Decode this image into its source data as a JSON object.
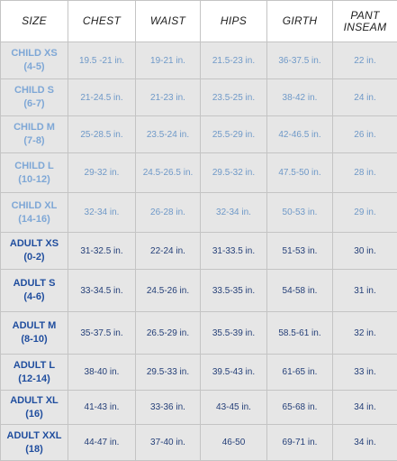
{
  "columns": [
    {
      "lines": [
        "SIZE"
      ]
    },
    {
      "lines": [
        "CHEST"
      ]
    },
    {
      "lines": [
        "WAIST"
      ]
    },
    {
      "lines": [
        "HIPS"
      ]
    },
    {
      "lines": [
        "GIRTH"
      ]
    },
    {
      "lines": [
        "PANT",
        "INSEAM"
      ]
    }
  ],
  "rows": [
    {
      "group": "child",
      "size": "CHILD XS",
      "range": "(4-5)",
      "chest": "19.5 -21 in.",
      "waist": "19-21 in.",
      "hips": "21.5-23 in.",
      "girth": "36-37.5 in.",
      "inseam": "22 in."
    },
    {
      "group": "child",
      "size": "CHILD S",
      "range": "(6-7)",
      "chest": "21-24.5 in.",
      "waist": "21-23 in.",
      "hips": "23.5-25 in.",
      "girth": "38-42 in.",
      "inseam": "24 in."
    },
    {
      "group": "child",
      "size": "CHILD M",
      "range": "(7-8)",
      "chest": "25-28.5 in.",
      "waist": "23.5-24 in.",
      "hips": "25.5-29 in.",
      "girth": "42-46.5 in.",
      "inseam": "26 in."
    },
    {
      "group": "child",
      "size": "CHILD L",
      "range": "(10-12)",
      "chest": "29-32 in.",
      "waist": "24.5-26.5 in.",
      "hips": "29.5-32 in.",
      "girth": "47.5-50 in.",
      "inseam": "28 in."
    },
    {
      "group": "child",
      "size": "CHILD XL",
      "range": "(14-16)",
      "chest": "32-34 in.",
      "waist": "26-28 in.",
      "hips": "32-34 in.",
      "girth": "50-53 in.",
      "inseam": "29 in."
    },
    {
      "group": "adult",
      "size": "ADULT XS",
      "range": "(0-2)",
      "chest": "31-32.5 in.",
      "waist": "22-24 in.",
      "hips": "31-33.5 in.",
      "girth": "51-53 in.",
      "inseam": "30 in."
    },
    {
      "group": "adult",
      "size": "ADULT S",
      "range": "(4-6)",
      "chest": "33-34.5 in.",
      "waist": "24.5-26 in.",
      "hips": "33.5-35 in.",
      "girth": "54-58 in.",
      "inseam": "31 in."
    },
    {
      "group": "adult",
      "size": "ADULT M",
      "range": "(8-10)",
      "chest": "35-37.5 in.",
      "waist": "26.5-29 in.",
      "hips": "35.5-39 in.",
      "girth": "58.5-61 in.",
      "inseam": "32 in."
    },
    {
      "group": "adult",
      "size": "ADULT L",
      "range": "(12-14)",
      "chest": "38-40 in.",
      "waist": "29.5-33 in.",
      "hips": "39.5-43 in.",
      "girth": "61-65 in.",
      "inseam": "33 in."
    },
    {
      "group": "adult",
      "size": "ADULT XL",
      "range": "(16)",
      "chest": "41-43 in.",
      "waist": "33-36 in.",
      "hips": "43-45 in.",
      "girth": "65-68 in.",
      "inseam": "34 in."
    },
    {
      "group": "adult",
      "size": "ADULT XXL",
      "range": "(18)",
      "chest": "44-47 in.",
      "waist": "37-40 in.",
      "hips": "46-50",
      "girth": "69-71 in.",
      "inseam": "34 in."
    }
  ],
  "colors": {
    "child_label": "#7ea7d6",
    "adult_label": "#1f4d9e",
    "cell_bg": "#e6e6e6",
    "border": "#c4c4c4"
  }
}
